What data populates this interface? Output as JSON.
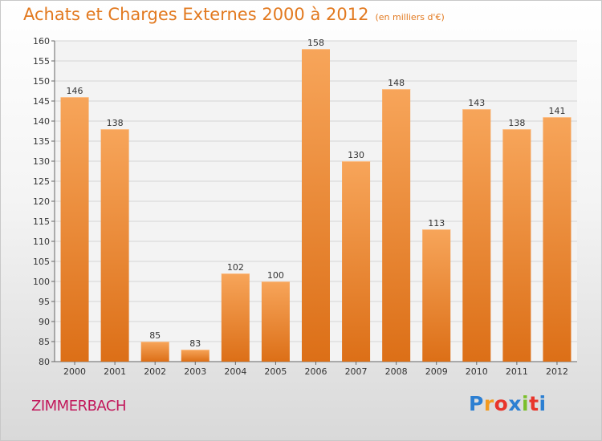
{
  "chart_data": {
    "type": "bar",
    "title": "Achats et Charges Externes 2000 à 2012",
    "subtitle": "(en milliers d'€)",
    "categories": [
      "2000",
      "2001",
      "2002",
      "2003",
      "2004",
      "2005",
      "2006",
      "2007",
      "2008",
      "2009",
      "2010",
      "2011",
      "2012"
    ],
    "values": [
      146,
      138,
      85,
      83,
      102,
      100,
      158,
      130,
      148,
      113,
      143,
      138,
      141
    ],
    "ylim": [
      80,
      160
    ],
    "yticks": [
      80,
      85,
      90,
      95,
      100,
      105,
      110,
      115,
      120,
      125,
      130,
      135,
      140,
      145,
      150,
      155,
      160
    ],
    "grid": true,
    "bar_color": "#f0883a"
  },
  "location": "ZIMMERBACH",
  "logo": {
    "letters": [
      "P",
      "r",
      "o",
      "x",
      "i",
      "t",
      "i"
    ],
    "colors": [
      "#2c7fd2",
      "#f39a1f",
      "#e8352b",
      "#2c7fd2",
      "#7bbf2a",
      "#e8352b",
      "#2c7fd2"
    ]
  }
}
